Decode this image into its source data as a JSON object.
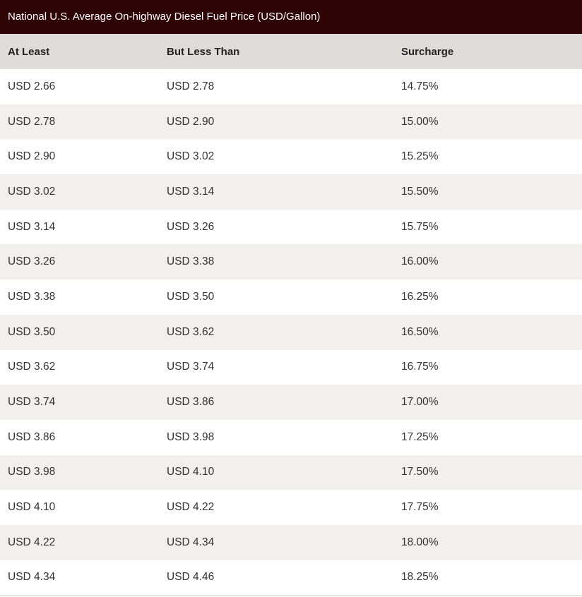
{
  "table": {
    "title": "National U.S. Average On-highway Diesel Fuel Price (USD/Gallon)",
    "headers": [
      "At Least",
      "But Less Than",
      "Surcharge"
    ],
    "rows": [
      [
        "USD 2.66",
        "USD 2.78",
        "14.75%"
      ],
      [
        "USD 2.78",
        "USD 2.90",
        "15.00%"
      ],
      [
        "USD 2.90",
        "USD 3.02",
        "15.25%"
      ],
      [
        "USD 3.02",
        "USD 3.14",
        "15.50%"
      ],
      [
        "USD 3.14",
        "USD 3.26",
        "15.75%"
      ],
      [
        "USD 3.26",
        "USD 3.38",
        "16.00%"
      ],
      [
        "USD 3.38",
        "USD 3.50",
        "16.25%"
      ],
      [
        "USD 3.50",
        "USD 3.62",
        "16.50%"
      ],
      [
        "USD 3.62",
        "USD 3.74",
        "16.75%"
      ],
      [
        "USD 3.74",
        "USD 3.86",
        "17.00%"
      ],
      [
        "USD 3.86",
        "USD 3.98",
        "17.25%"
      ],
      [
        "USD 3.98",
        "USD 4.10",
        "17.50%"
      ],
      [
        "USD 4.10",
        "USD 4.22",
        "17.75%"
      ],
      [
        "USD 4.22",
        "USD 4.34",
        "18.00%"
      ],
      [
        "USD 4.34",
        "USD 4.46",
        "18.25%"
      ]
    ]
  },
  "colors": {
    "title_background": "#2e0405",
    "header_background": "#dfdcd9",
    "row_alt_background": "#f1f0ee"
  }
}
